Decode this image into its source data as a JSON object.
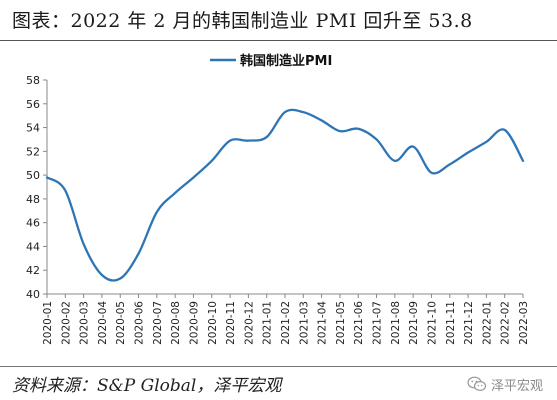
{
  "header": {
    "title": "图表：2022 年 2 月的韩国制造业 PMI 回升至 53.8"
  },
  "footer": {
    "source": "资料来源：S&P Global，泽平宏观",
    "watermark": "泽平宏观",
    "watermark_icon": "wechat-icon"
  },
  "chart_data": {
    "type": "line",
    "legend": {
      "position": "top-center"
    },
    "grid": false,
    "categories": [
      "2020-01",
      "2020-02",
      "2020-03",
      "2020-04",
      "2020-05",
      "2020-06",
      "2020-07",
      "2020-08",
      "2020-09",
      "2020-10",
      "2020-11",
      "2020-12",
      "2021-01",
      "2021-02",
      "2021-03",
      "2021-04",
      "2021-05",
      "2021-06",
      "2021-07",
      "2021-08",
      "2021-09",
      "2021-10",
      "2021-11",
      "2021-12",
      "2022-01",
      "2022-02",
      "2022-03"
    ],
    "series": [
      {
        "name": "韩国制造业PMI",
        "color": "#2e75b6",
        "values": [
          49.8,
          48.7,
          44.2,
          41.6,
          41.3,
          43.4,
          46.9,
          48.5,
          49.8,
          51.2,
          52.9,
          52.9,
          53.2,
          55.3,
          55.3,
          54.6,
          53.7,
          53.9,
          53.0,
          51.2,
          52.4,
          50.2,
          50.9,
          51.9,
          52.8,
          53.8,
          51.2
        ]
      }
    ],
    "ylim": [
      40,
      58
    ],
    "yticks": [
      40,
      42,
      44,
      46,
      48,
      50,
      52,
      54,
      56,
      58
    ]
  }
}
